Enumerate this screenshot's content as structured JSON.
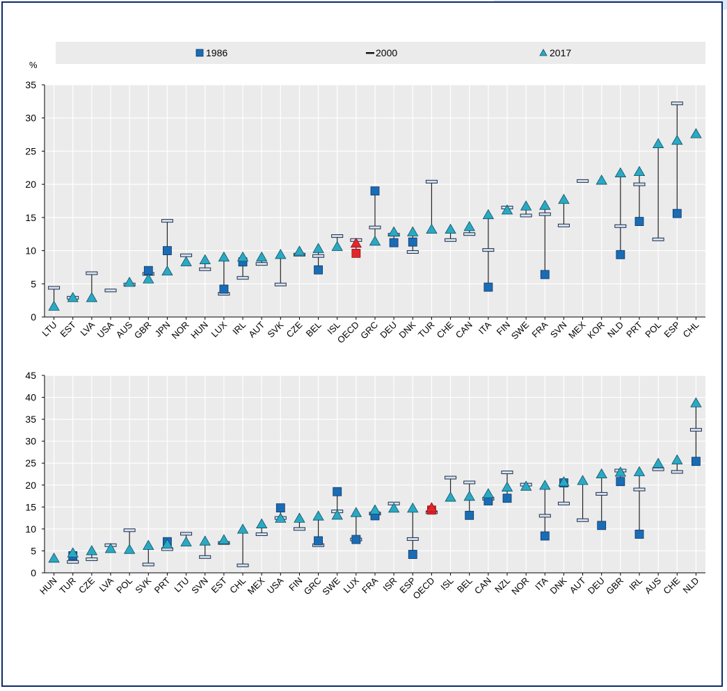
{
  "chart_data": [
    {
      "type": "scatter",
      "ylabel": "%",
      "ylim": [
        0,
        35
      ],
      "yticks": [
        0,
        5,
        10,
        15,
        20,
        25,
        30,
        35
      ],
      "grid": true,
      "legend_position": "top",
      "highlight_category": "OECD",
      "categories": [
        "LTU",
        "EST",
        "LVA",
        "USA",
        "AUS",
        "GBR",
        "JPN",
        "NOR",
        "HUN",
        "LUX",
        "IRL",
        "AUT",
        "SVK",
        "CZE",
        "BEL",
        "ISL",
        "OECD",
        "GRC",
        "DEU",
        "DNK",
        "TUR",
        "CHE",
        "CAN",
        "ITA",
        "FIN",
        "SWE",
        "FRA",
        "SVN",
        "MEX",
        "KOR",
        "NLD",
        "PRT",
        "POL",
        "ESP",
        "CHL"
      ],
      "series": [
        {
          "name": "1986",
          "marker": "square",
          "values": [
            null,
            null,
            null,
            null,
            null,
            7.0,
            10.0,
            null,
            null,
            4.2,
            8.3,
            null,
            null,
            null,
            7.1,
            null,
            9.6,
            19.0,
            11.2,
            11.3,
            null,
            null,
            null,
            4.5,
            null,
            null,
            6.4,
            null,
            null,
            null,
            9.4,
            14.4,
            null,
            15.6,
            null
          ]
        },
        {
          "name": "2000",
          "marker": "dash",
          "values": [
            4.4,
            2.9,
            6.6,
            4.0,
            4.9,
            6.5,
            14.5,
            9.3,
            7.2,
            3.5,
            5.9,
            8.0,
            4.9,
            9.4,
            9.2,
            12.2,
            11.6,
            13.5,
            12.4,
            9.8,
            20.4,
            11.6,
            12.5,
            10.1,
            16.5,
            15.3,
            15.5,
            13.8,
            20.5,
            null,
            13.7,
            20.0,
            11.7,
            32.2,
            null
          ]
        },
        {
          "name": "2017",
          "marker": "triangle",
          "values": [
            1.6,
            2.9,
            2.9,
            null,
            5.2,
            5.7,
            6.9,
            8.3,
            8.6,
            9.0,
            9.0,
            9.0,
            9.4,
            9.9,
            10.3,
            10.6,
            11.1,
            11.4,
            12.8,
            12.8,
            13.2,
            13.2,
            13.6,
            15.4,
            16.1,
            16.7,
            16.8,
            17.7,
            null,
            20.6,
            21.7,
            21.9,
            26.1,
            26.6,
            27.6
          ]
        }
      ]
    },
    {
      "type": "scatter",
      "ylim": [
        0,
        45
      ],
      "yticks": [
        0,
        5,
        10,
        15,
        20,
        25,
        30,
        35,
        40,
        45
      ],
      "grid": true,
      "highlight_category": "OECD",
      "categories": [
        "HUN",
        "TUR",
        "CZE",
        "LVA",
        "POL",
        "SVK",
        "PRT",
        "LTU",
        "SVN",
        "EST",
        "CHL",
        "MEX",
        "USA",
        "FIN",
        "GRC",
        "SWE",
        "LUX",
        "FRA",
        "ISR",
        "ESP",
        "OECD",
        "ISL",
        "BEL",
        "CAN",
        "NZL",
        "NOR",
        "ITA",
        "DNK",
        "AUT",
        "DEU",
        "GBR",
        "IRL",
        "AUS",
        "CHE",
        "NLD"
      ],
      "series": [
        {
          "name": "1986",
          "marker": "square",
          "values": [
            null,
            3.9,
            null,
            null,
            null,
            null,
            7.1,
            null,
            null,
            null,
            null,
            null,
            14.8,
            null,
            7.3,
            18.5,
            7.6,
            13.0,
            null,
            4.2,
            14.3,
            null,
            13.1,
            16.4,
            17.0,
            null,
            8.4,
            20.5,
            null,
            10.8,
            20.8,
            8.8,
            null,
            null,
            25.4
          ]
        },
        {
          "name": "2000",
          "marker": "dash",
          "values": [
            null,
            2.5,
            3.1,
            6.3,
            9.7,
            1.9,
            5.4,
            8.9,
            3.6,
            6.8,
            1.7,
            8.8,
            12.5,
            10.0,
            6.3,
            14.0,
            7.6,
            13.5,
            15.8,
            7.7,
            13.8,
            21.7,
            20.6,
            16.9,
            22.9,
            20.1,
            13.0,
            15.8,
            12.0,
            18.0,
            23.3,
            19.0,
            23.6,
            23.0,
            32.6
          ]
        },
        {
          "name": "2017",
          "marker": "triangle",
          "values": [
            3.3,
            4.5,
            5.0,
            5.5,
            5.3,
            6.2,
            6.5,
            7.0,
            7.2,
            7.5,
            9.9,
            11.1,
            12.4,
            12.4,
            12.9,
            13.1,
            13.7,
            14.3,
            14.7,
            14.7,
            14.8,
            17.2,
            17.4,
            18.0,
            19.5,
            19.7,
            19.9,
            20.7,
            21.0,
            22.5,
            22.9,
            23.0,
            24.9,
            25.7,
            38.7
          ]
        }
      ]
    }
  ]
}
